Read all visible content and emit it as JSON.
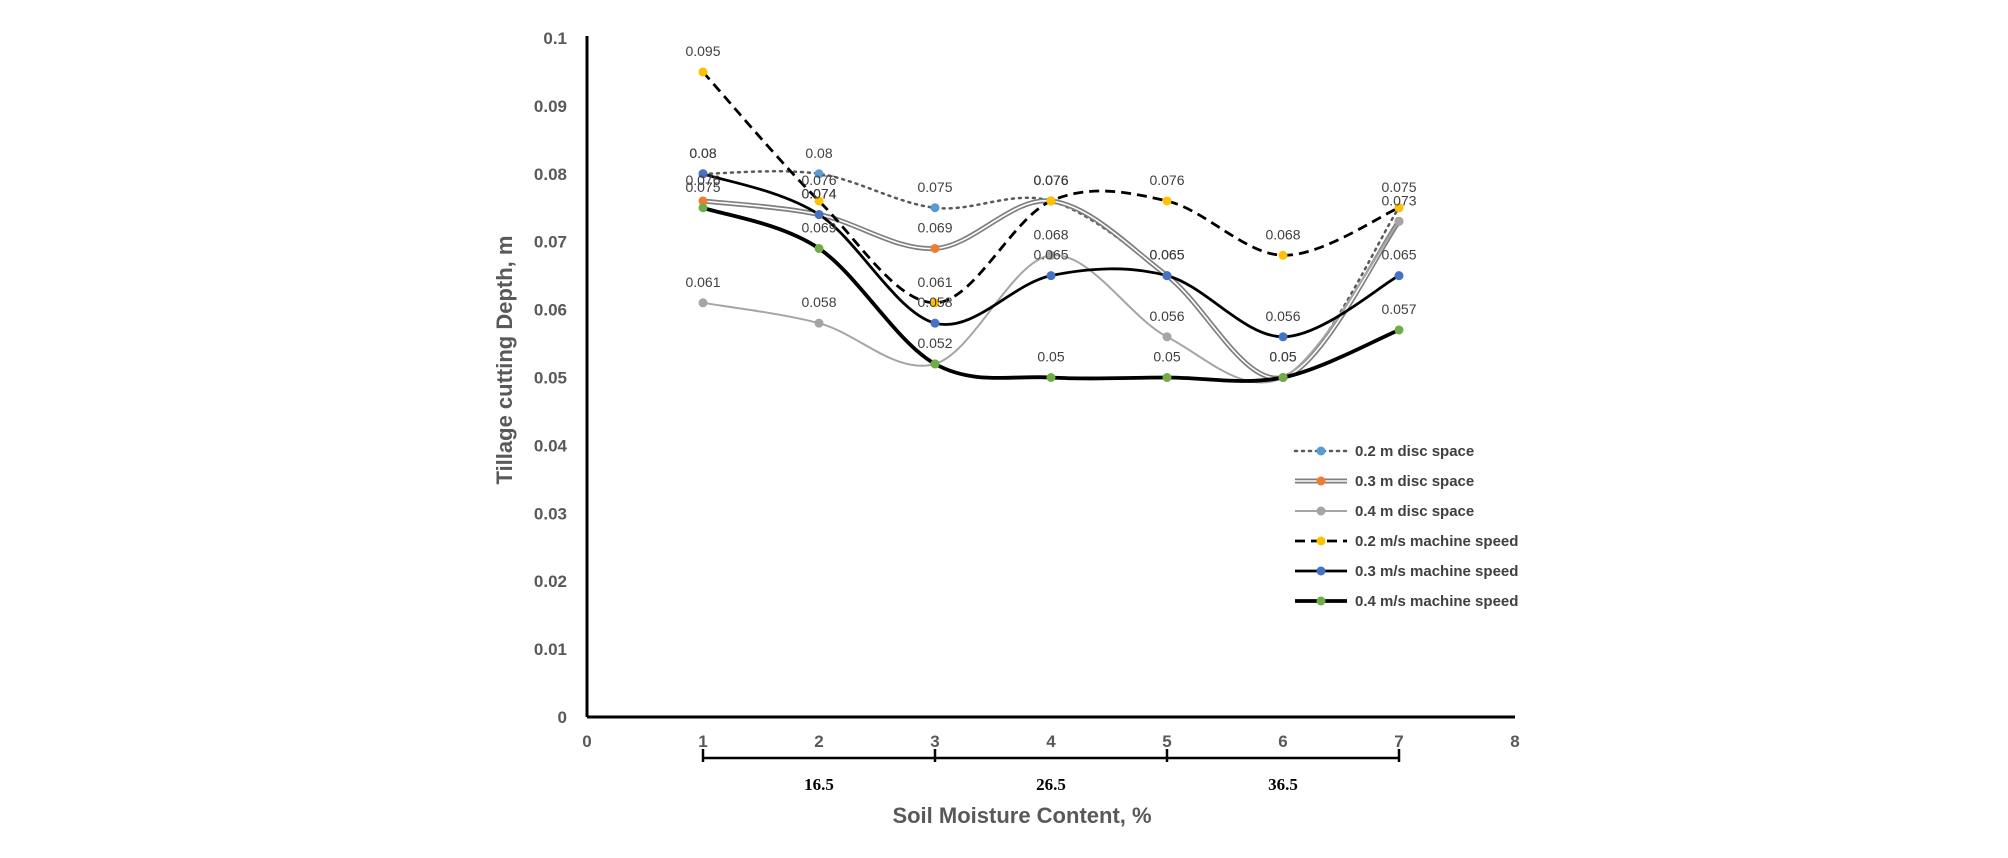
{
  "chart_data": {
    "type": "line",
    "title": "",
    "xlabel": "Soil Moisture Content, %",
    "ylabel": "Tillage cutting Depth,  m",
    "xlim": [
      0,
      8
    ],
    "ylim": [
      0,
      0.1
    ],
    "x_ticks": [
      "0",
      "1",
      "2",
      "3",
      "4",
      "5",
      "6",
      "7",
      "8"
    ],
    "y_ticks": [
      "0",
      "0.01",
      "0.02",
      "0.03",
      "0.04",
      "0.05",
      "0.06",
      "0.07",
      "0.08",
      "0.09",
      "0.1"
    ],
    "grid": false,
    "legend_position": "right",
    "moisture_groups": [
      {
        "label": "16.5",
        "from": 1,
        "to": 3
      },
      {
        "label": "26.5",
        "from": 3,
        "to": 5
      },
      {
        "label": "36.5",
        "from": 5,
        "to": 7
      }
    ],
    "x": [
      1,
      2,
      3,
      4,
      5,
      6,
      7
    ],
    "series": [
      {
        "name": "0.2 m disc space",
        "style": "dotted",
        "line_color": "#595959",
        "marker_color": "#5B9BD5",
        "values": [
          0.08,
          0.08,
          0.075,
          0.076,
          0.065,
          0.05,
          0.075
        ],
        "labels": [
          "0.08",
          "0.08",
          "0.075",
          "0.076",
          "",
          "",
          ""
        ]
      },
      {
        "name": "0.3  m disc space",
        "style": "double",
        "line_color": "#7f7f7f",
        "marker_color": "#ED7D31",
        "values": [
          0.076,
          0.074,
          0.069,
          0.076,
          0.065,
          0.05,
          0.073
        ],
        "labels": [
          "0.076",
          "0.074",
          "0.069",
          "0.076",
          "0.065",
          "0.05",
          "0.073"
        ]
      },
      {
        "name": "0.4 m disc space",
        "style": "solid-light",
        "line_color": "#A5A5A5",
        "marker_color": "#A5A5A5",
        "values": [
          0.061,
          0.058,
          0.052,
          0.068,
          0.056,
          0.05,
          0.073
        ],
        "labels": [
          "0.061",
          "0.058",
          "",
          "0.068",
          "0.056",
          "",
          ""
        ]
      },
      {
        "name": "0.2 m/s machine speed",
        "style": "dashed",
        "line_color": "#000000",
        "marker_color": "#FFC000",
        "values": [
          0.095,
          0.076,
          0.061,
          0.076,
          0.076,
          0.068,
          0.075
        ],
        "labels": [
          "0.095",
          "0.076",
          "0.061",
          "0.076",
          "0.076",
          "0.068",
          "0.075"
        ]
      },
      {
        "name": "0.3 m/s machine speed",
        "style": "solid",
        "line_color": "#000000",
        "marker_color": "#4472C4",
        "values": [
          0.08,
          0.074,
          0.058,
          0.065,
          0.065,
          0.056,
          0.065
        ],
        "labels": [
          "0.08",
          "0.074",
          "0.058",
          "0.065",
          "0.065",
          "0.056",
          "0.065"
        ]
      },
      {
        "name": "0.4 m/s machine speed",
        "style": "solid-thick",
        "line_color": "#000000",
        "marker_color": "#70AD47",
        "values": [
          0.075,
          0.069,
          0.052,
          0.05,
          0.05,
          0.05,
          0.057
        ],
        "labels": [
          "0.075",
          "0.069",
          "0.052",
          "0.05",
          "0.05",
          "0.05",
          "0.057"
        ]
      }
    ]
  }
}
